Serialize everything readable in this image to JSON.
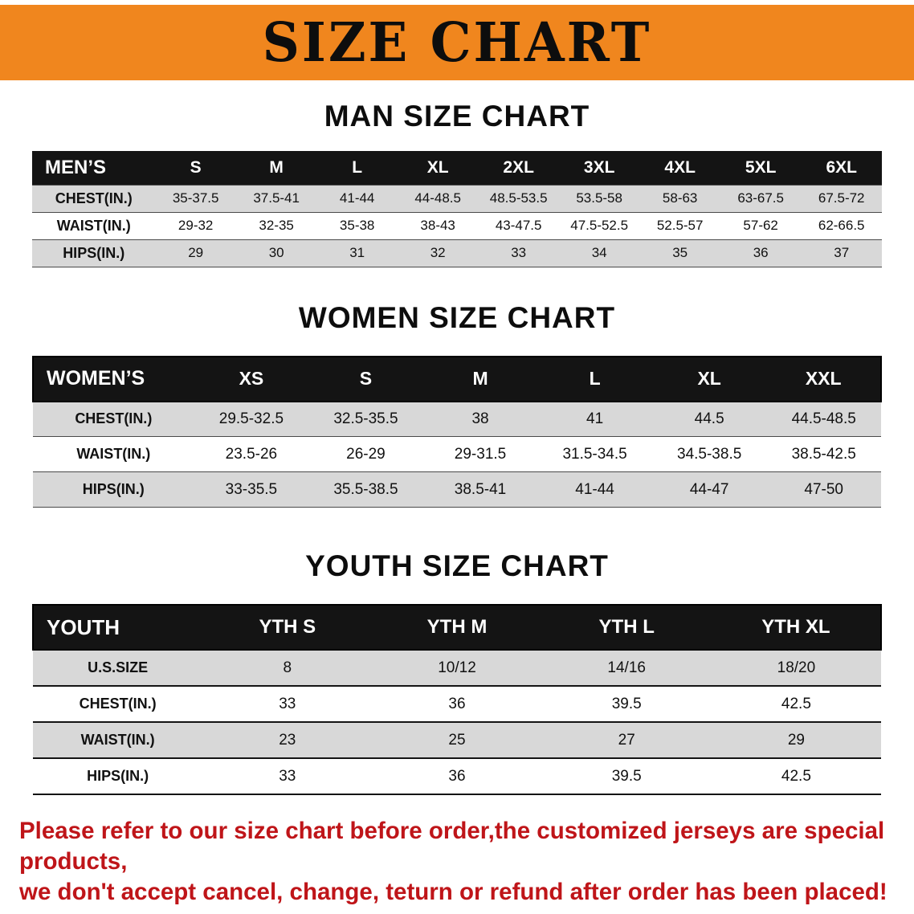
{
  "banner": {
    "title": "SIZE CHART"
  },
  "sections": [
    {
      "heading": "MAN SIZE CHART",
      "table": {
        "header": [
          "MEN’S",
          "S",
          "M",
          "L",
          "XL",
          "2XL",
          "3XL",
          "4XL",
          "5XL",
          "6XL"
        ],
        "rows": [
          {
            "label": "CHEST(IN.)",
            "values": [
              "35-37.5",
              "37.5-41",
              "41-44",
              "44-48.5",
              "48.5-53.5",
              "53.5-58",
              "58-63",
              "63-67.5",
              "67.5-72"
            ]
          },
          {
            "label": "WAIST(IN.)",
            "values": [
              "29-32",
              "32-35",
              "35-38",
              "38-43",
              "43-47.5",
              "47.5-52.5",
              "52.5-57",
              "57-62",
              "62-66.5"
            ]
          },
          {
            "label": "HIPS(IN.)",
            "values": [
              "29",
              "30",
              "31",
              "32",
              "33",
              "34",
              "35",
              "36",
              "37"
            ]
          }
        ]
      }
    },
    {
      "heading": "WOMEN SIZE CHART",
      "table": {
        "header": [
          "WOMEN’S",
          "XS",
          "S",
          "M",
          "L",
          "XL",
          "XXL"
        ],
        "rows": [
          {
            "label": "CHEST(IN.)",
            "values": [
              "29.5-32.5",
              "32.5-35.5",
              "38",
              "41",
              "44.5",
              "44.5-48.5"
            ]
          },
          {
            "label": "WAIST(IN.)",
            "values": [
              "23.5-26",
              "26-29",
              "29-31.5",
              "31.5-34.5",
              "34.5-38.5",
              "38.5-42.5"
            ]
          },
          {
            "label": "HIPS(IN.)",
            "values": [
              "33-35.5",
              "35.5-38.5",
              "38.5-41",
              "41-44",
              "44-47",
              "47-50"
            ]
          }
        ]
      }
    },
    {
      "heading": "YOUTH SIZE CHART",
      "table": {
        "header": [
          "YOUTH",
          "YTH S",
          "YTH M",
          "YTH L",
          "YTH XL"
        ],
        "rows": [
          {
            "label": "U.S.SIZE",
            "values": [
              "8",
              "10/12",
              "14/16",
              "18/20"
            ]
          },
          {
            "label": "CHEST(IN.)",
            "values": [
              "33",
              "36",
              "39.5",
              "42.5"
            ]
          },
          {
            "label": "WAIST(IN.)",
            "values": [
              "23",
              "25",
              "27",
              "29"
            ]
          },
          {
            "label": "HIPS(IN.)",
            "values": [
              "33",
              "36",
              "39.5",
              "42.5"
            ]
          }
        ]
      }
    }
  ],
  "footer": {
    "line1": "Please refer to our size chart before order,the customized jerseys are special products,",
    "line2": "we don't accept cancel, change, teturn or refund after order has been placed!"
  },
  "colors": {
    "banner_background": "#F0861E",
    "table_header_background": "#141414",
    "row_stripe": "#d8d8d8",
    "footer_text": "#bf1519"
  }
}
